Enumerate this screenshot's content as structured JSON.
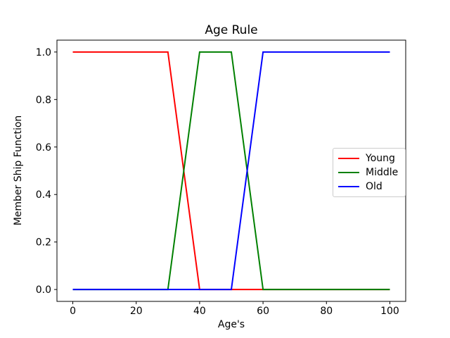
{
  "figure": {
    "background": "#ffffff",
    "spine_color": "#000000",
    "legend_border_color": "#cccccc"
  },
  "chart_data": {
    "type": "line",
    "title": "Age Rule",
    "xlabel": "Age's",
    "ylabel": "Member Ship Function",
    "xlim": [
      -5,
      105
    ],
    "ylim": [
      -0.05,
      1.05
    ],
    "x_ticks": [
      0,
      20,
      40,
      60,
      80,
      100
    ],
    "y_ticks": [
      0.0,
      0.2,
      0.4,
      0.6,
      0.8,
      1.0
    ],
    "grid": false,
    "legend": {
      "position": "center-right",
      "entries": [
        "Young",
        "Middle",
        "Old"
      ]
    },
    "series": [
      {
        "name": "Young",
        "color": "#ff0000",
        "points": [
          [
            0,
            1
          ],
          [
            30,
            1
          ],
          [
            40,
            0
          ],
          [
            100,
            0
          ]
        ]
      },
      {
        "name": "Middle",
        "color": "#008000",
        "points": [
          [
            0,
            0
          ],
          [
            30,
            0
          ],
          [
            40,
            1
          ],
          [
            50,
            1
          ],
          [
            60,
            0
          ],
          [
            100,
            0
          ]
        ]
      },
      {
        "name": "Old",
        "color": "#0000ff",
        "points": [
          [
            0,
            0
          ],
          [
            50,
            0
          ],
          [
            60,
            1
          ],
          [
            100,
            1
          ]
        ]
      }
    ]
  }
}
